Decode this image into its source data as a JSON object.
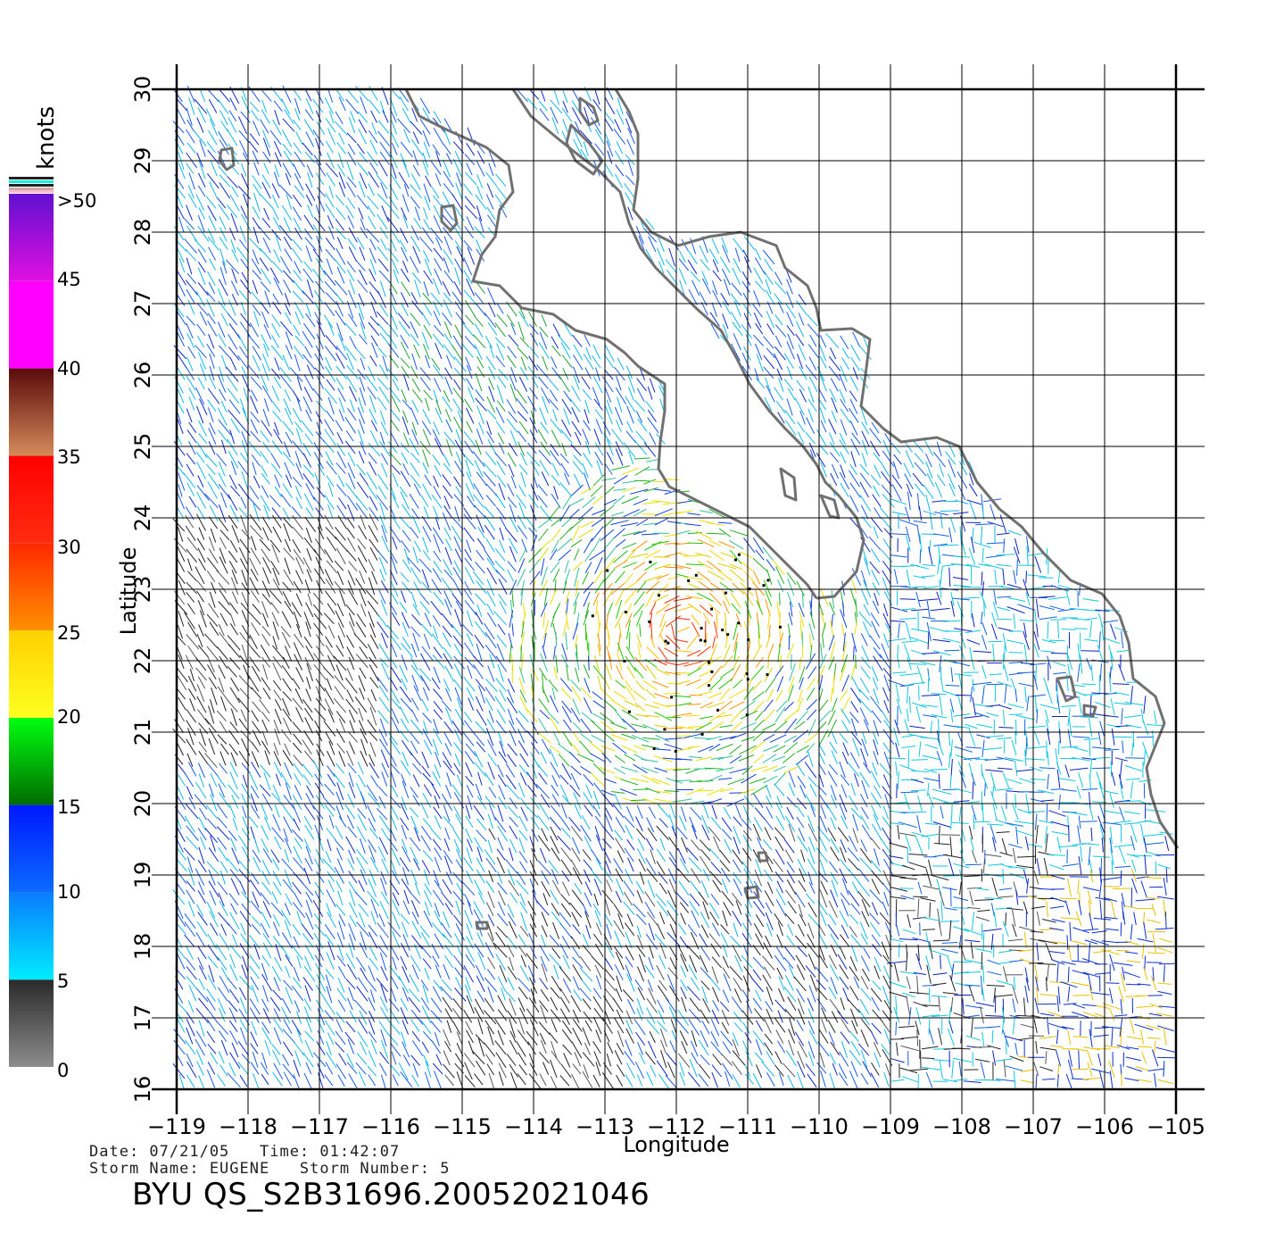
{
  "colorbar": {
    "unit_label": "knots",
    "labels": [
      ">50",
      "45",
      "40",
      "35",
      "30",
      "25",
      "20",
      "15",
      "10",
      "5",
      "0"
    ],
    "bands": [
      {
        "from": 0,
        "to": 5,
        "top": "#2a2a2a",
        "bottom": "#8c8c8c"
      },
      {
        "from": 5,
        "to": 10,
        "top": "#0a7cff",
        "bottom": "#00ecff"
      },
      {
        "from": 10,
        "to": 15,
        "top": "#0018ff",
        "bottom": "#0a6cff"
      },
      {
        "from": 15,
        "to": 20,
        "top": "#00ff10",
        "bottom": "#006c00"
      },
      {
        "from": 20,
        "to": 25,
        "top": "#ffd000",
        "bottom": "#ffff20"
      },
      {
        "from": 25,
        "to": 30,
        "top": "#ff2800",
        "bottom": "#ff9000"
      },
      {
        "from": 30,
        "to": 35,
        "top": "#ff0000",
        "bottom": "#ff2c10"
      },
      {
        "from": 35,
        "to": 40,
        "top": "#5a0a0a",
        "bottom": "#d48a5a"
      },
      {
        "from": 40,
        "to": 45,
        "top": "#ff00ff",
        "bottom": "#ff00ff"
      },
      {
        "from": 45,
        "to": 50,
        "top": "#6010d0",
        "bottom": "#e010e0"
      }
    ]
  },
  "axes": {
    "xlabel": "Longitude",
    "ylabel": "Latitude",
    "lon_ticks": [
      "-119",
      "-118",
      "-117",
      "-116",
      "-115",
      "-114",
      "-113",
      "-112",
      "-111",
      "-110",
      "-109",
      "-108",
      "-107",
      "-106",
      "-105"
    ],
    "lat_ticks": [
      "30",
      "29",
      "28",
      "27",
      "26",
      "25",
      "24",
      "23",
      "22",
      "21",
      "20",
      "19",
      "18",
      "17",
      "16"
    ],
    "lon_range": [
      -119,
      -104.6
    ],
    "lat_range": [
      16,
      30
    ]
  },
  "info": {
    "line1": "Date: 07/21/05   Time: 01:42:07",
    "line2": "Storm Name: EUGENE   Storm Number: 5",
    "product_id": "BYU QS_S2B31696.20052021046"
  },
  "colors": {
    "coastline": "#707070",
    "grid": "#000000",
    "storm_marker": "#000000"
  },
  "storm_center": {
    "lon": -111.9,
    "lat": 22.4
  }
}
